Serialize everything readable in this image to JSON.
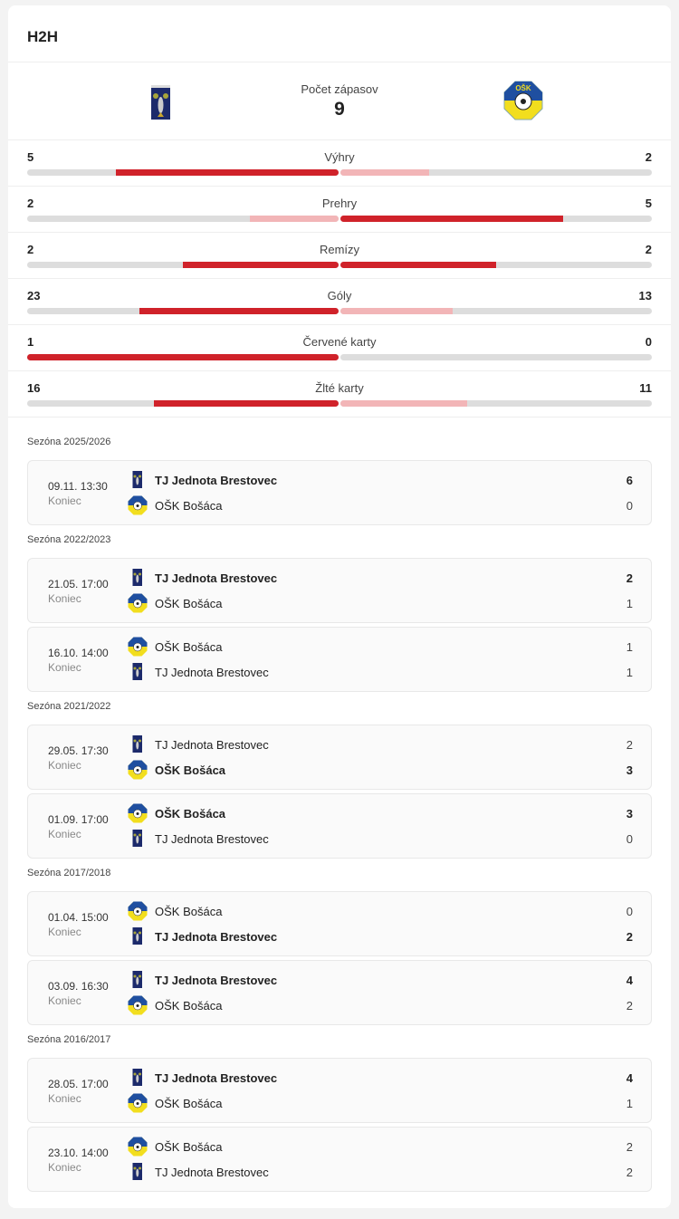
{
  "header": {
    "title": "H2H"
  },
  "teams": {
    "home": {
      "name": "TJ Jednota Brestovec",
      "logo": "brestovec-crest-icon"
    },
    "away": {
      "name": "OŠK Bošáca",
      "logo": "bosaca-crest-icon"
    },
    "count_label": "Počet zápasov",
    "count": "9"
  },
  "colors": {
    "strong": "#d0222a",
    "weak": "#f2b5b7",
    "track": "#dddddd"
  },
  "stats": [
    {
      "label": "Výhry",
      "home": "5",
      "away": "2"
    },
    {
      "label": "Prehry",
      "home": "2",
      "away": "5"
    },
    {
      "label": "Remízy",
      "home": "2",
      "away": "2"
    },
    {
      "label": "Góly",
      "home": "23",
      "away": "13"
    },
    {
      "label": "Červené karty",
      "home": "1",
      "away": "0"
    },
    {
      "label": "Žlté karty",
      "home": "16",
      "away": "11"
    }
  ],
  "seasons": [
    {
      "label": "Sezóna 2025/2026",
      "matches": [
        {
          "date": "09.11. 13:30",
          "status": "Koniec",
          "t1": "TJ Jednota Brestovec",
          "s1": "6",
          "t2": "OŠK Bošáca",
          "s2": "0"
        }
      ]
    },
    {
      "label": "Sezóna 2022/2023",
      "matches": [
        {
          "date": "21.05. 17:00",
          "status": "Koniec",
          "t1": "TJ Jednota Brestovec",
          "s1": "2",
          "t2": "OŠK Bošáca",
          "s2": "1"
        },
        {
          "date": "16.10. 14:00",
          "status": "Koniec",
          "t1": "OŠK Bošáca",
          "s1": "1",
          "t2": "TJ Jednota Brestovec",
          "s2": "1"
        }
      ]
    },
    {
      "label": "Sezóna 2021/2022",
      "matches": [
        {
          "date": "29.05. 17:30",
          "status": "Koniec",
          "t1": "TJ Jednota Brestovec",
          "s1": "2",
          "t2": "OŠK Bošáca",
          "s2": "3"
        },
        {
          "date": "01.09. 17:00",
          "status": "Koniec",
          "t1": "OŠK Bošáca",
          "s1": "3",
          "t2": "TJ Jednota Brestovec",
          "s2": "0"
        }
      ]
    },
    {
      "label": "Sezóna 2017/2018",
      "matches": [
        {
          "date": "01.04. 15:00",
          "status": "Koniec",
          "t1": "OŠK Bošáca",
          "s1": "0",
          "t2": "TJ Jednota Brestovec",
          "s2": "2"
        },
        {
          "date": "03.09. 16:30",
          "status": "Koniec",
          "t1": "TJ Jednota Brestovec",
          "s1": "4",
          "t2": "OŠK Bošáca",
          "s2": "2"
        }
      ]
    },
    {
      "label": "Sezóna 2016/2017",
      "matches": [
        {
          "date": "28.05. 17:00",
          "status": "Koniec",
          "t1": "TJ Jednota Brestovec",
          "s1": "4",
          "t2": "OŠK Bošáca",
          "s2": "1"
        },
        {
          "date": "23.10. 14:00",
          "status": "Koniec",
          "t1": "OŠK Bošáca",
          "s1": "2",
          "t2": "TJ Jednota Brestovec",
          "s2": "2"
        }
      ]
    }
  ]
}
